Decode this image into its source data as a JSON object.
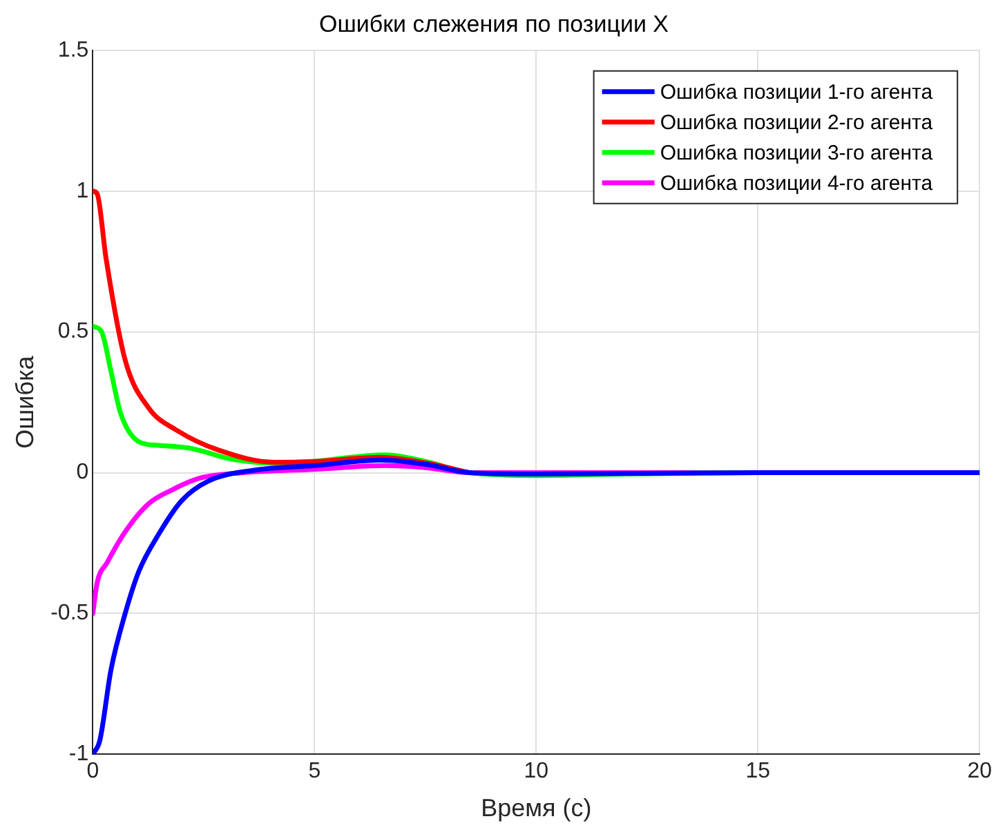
{
  "chart_data": {
    "type": "line",
    "title": "Ошибки слежения по позиции X",
    "xlabel": "Время (с)",
    "ylabel": "Ошибка",
    "xlim": [
      0,
      20
    ],
    "xticks": [
      0,
      5,
      10,
      15,
      20
    ],
    "ylim": [
      -1,
      1.5
    ],
    "yticks": [
      -1,
      -0.5,
      0,
      0.5,
      1,
      1.5
    ],
    "grid": true,
    "legend": "top right",
    "marker": "none",
    "line_style": "solid",
    "series": [
      {
        "name": "Ошибка позиции 1-го агента",
        "color": "#0000ff",
        "x": [
          0,
          0.16,
          0.41,
          0.73,
          1.04,
          1.48,
          2,
          2.6,
          3.7,
          5,
          6.5,
          7.5,
          8.5,
          10,
          15,
          20
        ],
        "values": [
          -1,
          -0.95,
          -0.7,
          -0.5,
          -0.35,
          -0.22,
          -0.1,
          -0.03,
          0.01,
          0.025,
          0.045,
          0.03,
          0,
          -0.005,
          0,
          0
        ]
      },
      {
        "name": "Ошибка позиции 2-го агента",
        "color": "#ff0000",
        "x": [
          0,
          0.1,
          0.3,
          0.73,
          1.26,
          1.9,
          2.84,
          4.1,
          5,
          6.5,
          7.5,
          8.5
        ],
        "values": [
          1,
          0.99,
          0.76,
          0.4,
          0.23,
          0.15,
          0.08,
          0.037,
          0.04,
          0.055,
          0.035,
          0
        ]
      },
      {
        "name": "Ошибка позиции 3-го агента",
        "color": "#00ff00",
        "x": [
          0,
          0.2,
          0.41,
          0.63,
          1.04,
          1.48,
          2.2,
          3.16,
          4.4,
          5,
          6.6,
          7.5,
          8.5,
          10,
          12,
          15,
          20
        ],
        "values": [
          0.52,
          0.5,
          0.36,
          0.21,
          0.11,
          0.097,
          0.087,
          0.047,
          0.032,
          0.04,
          0.063,
          0.04,
          0,
          -0.01,
          -0.005,
          0,
          0
        ]
      },
      {
        "name": "Ошибка позиции 4-го агента",
        "color": "#ff00ff",
        "x": [
          0,
          0.1,
          0.32,
          0.73,
          1.26,
          1.8,
          2.4,
          3.4,
          5,
          6.6,
          7.5,
          8.5,
          10,
          15,
          20
        ],
        "values": [
          -0.5,
          -0.39,
          -0.32,
          -0.21,
          -0.11,
          -0.06,
          -0.02,
          0,
          0.012,
          0.025,
          0.018,
          0,
          0,
          0,
          0
        ]
      }
    ]
  }
}
